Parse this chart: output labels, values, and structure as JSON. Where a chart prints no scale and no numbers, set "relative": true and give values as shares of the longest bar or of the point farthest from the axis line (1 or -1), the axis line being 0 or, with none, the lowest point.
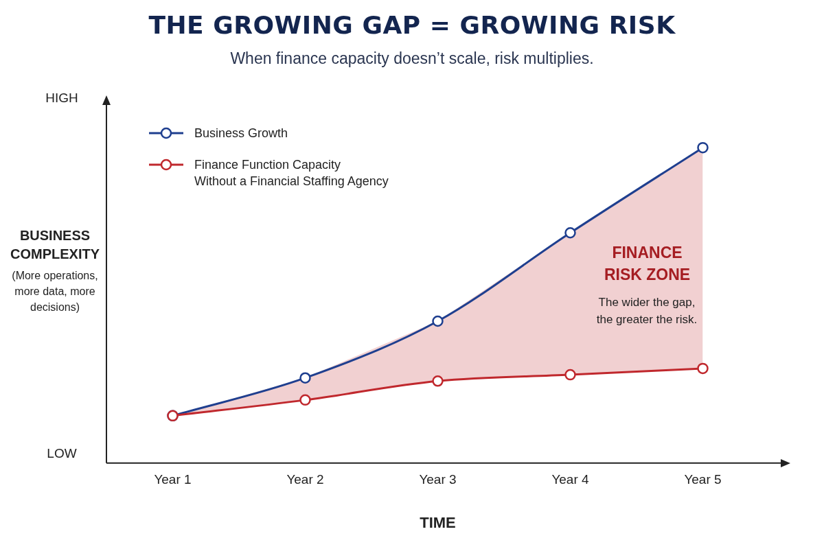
{
  "chart_data": {
    "type": "line",
    "title": "THE GROWING GAP = GROWING RISK",
    "subtitle": "When finance capacity doesn’t scale, risk multiplies.",
    "xlabel": "TIME",
    "ylabel": "BUSINESS COMPLEXITY",
    "categories": [
      "Year 1",
      "Year 2",
      "Year 3",
      "Year 4",
      "Year 5"
    ],
    "series": [
      {
        "name": "Business Growth",
        "color": "#1f3f8f",
        "values": [
          0.15,
          0.27,
          0.45,
          0.73,
          1
        ],
        "lower": [
          0.15,
          0.2,
          0.26,
          0.28,
          0.3
        ],
        "upper": [
          0.15,
          0.27,
          0.45,
          0.73,
          1
        ]
      },
      {
        "name": "Finance Function Capacity\nWithout a Financial Staffing Agency",
        "color": "#c0282d",
        "values": [
          0.15,
          0.2,
          0.26,
          0.28,
          0.3
        ]
      }
    ],
    "relative": true,
    "grid": false,
    "legend": "top left",
    "marker": "circle",
    "line_style": "solid",
    "annotations": [
      "HIGH",
      "LOW",
      "(More operations, more data, more decisions)",
      "FINANCE RISK ZONE",
      "The wider the gap, the greater the risk."
    ]
  }
}
